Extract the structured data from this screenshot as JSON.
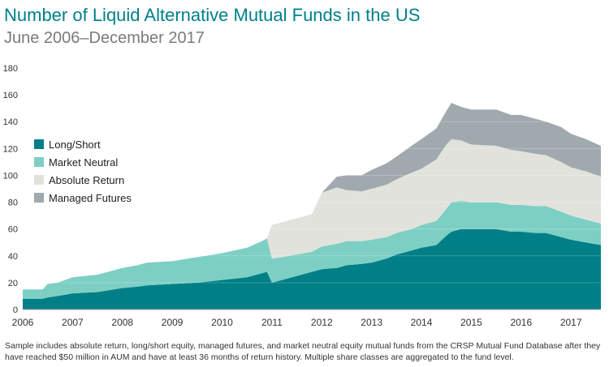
{
  "chart_data": {
    "type": "area",
    "stacked": true,
    "title": "Number of Liquid Alternative Mutual Funds in the US",
    "subtitle": "June 2006–December 2017",
    "xlabel": "",
    "ylabel": "",
    "xlim": [
      2006.0,
      2017.6
    ],
    "ylim": [
      0,
      180
    ],
    "yticks": [
      0,
      20,
      40,
      60,
      80,
      100,
      120,
      140,
      160,
      180
    ],
    "xticks": [
      "2006",
      "2007",
      "2008",
      "2009",
      "2010",
      "2011",
      "2012",
      "2013",
      "2014",
      "2015",
      "2016",
      "2017"
    ],
    "legend_position": "left",
    "x": [
      2006.0,
      2006.4,
      2006.5,
      2006.7,
      2007.0,
      2007.5,
      2008.0,
      2008.3,
      2008.5,
      2009.0,
      2009.5,
      2010.0,
      2010.5,
      2010.8,
      2010.9,
      2011.0,
      2011.2,
      2011.5,
      2011.8,
      2012.0,
      2012.3,
      2012.5,
      2012.8,
      2013.0,
      2013.3,
      2013.5,
      2013.8,
      2014.0,
      2014.3,
      2014.5,
      2014.6,
      2014.8,
      2015.0,
      2015.5,
      2015.8,
      2016.0,
      2016.3,
      2016.5,
      2016.8,
      2017.0,
      2017.3,
      2017.6
    ],
    "series": [
      {
        "name": "Long/Short",
        "color": "#007f86",
        "values": [
          8,
          8,
          9,
          10,
          12,
          13,
          16,
          17,
          18,
          19,
          20,
          22,
          24,
          27,
          28,
          20,
          22,
          25,
          28,
          30,
          31,
          33,
          34,
          35,
          38,
          41,
          44,
          46,
          48,
          55,
          58,
          60,
          60,
          60,
          58,
          58,
          57,
          57,
          54,
          52,
          50,
          48
        ]
      },
      {
        "name": "Market Neutral",
        "color": "#7dcfc4",
        "values": [
          7,
          7,
          10,
          10,
          12,
          13,
          15,
          16,
          17,
          17,
          19,
          20,
          22,
          24,
          25,
          18,
          17,
          16,
          15,
          17,
          18,
          18,
          17,
          17,
          16,
          16,
          16,
          17,
          18,
          20,
          22,
          21,
          20,
          20,
          20,
          20,
          20,
          20,
          19,
          18,
          17,
          16
        ]
      },
      {
        "name": "Absolute Return",
        "color": "#e2e2dd",
        "values": [
          0,
          0,
          0,
          0,
          0,
          0,
          0,
          0,
          0,
          0,
          0,
          0,
          0,
          0,
          0,
          25,
          26,
          27,
          28,
          40,
          42,
          38,
          37,
          38,
          39,
          40,
          42,
          42,
          46,
          48,
          47,
          45,
          43,
          42,
          41,
          40,
          39,
          38,
          37,
          36,
          36,
          35
        ]
      },
      {
        "name": "Managed Futures",
        "color": "#a0a9ad",
        "values": [
          0,
          0,
          0,
          0,
          0,
          0,
          0,
          0,
          0,
          0,
          0,
          0,
          0,
          0,
          0,
          0,
          0,
          0,
          0,
          0,
          8,
          11,
          12,
          14,
          16,
          17,
          20,
          22,
          23,
          25,
          27,
          25,
          26,
          27,
          26,
          27,
          26,
          25,
          26,
          25,
          24,
          23
        ]
      }
    ]
  },
  "footnote": "Sample includes absolute return, long/short equity, managed futures, and market neutral equity mutual funds from the CRSP Mutual Fund Database after they have reached $50 million in AUM and have at least 36 months of return history. Multiple share classes are aggregated to the fund level."
}
